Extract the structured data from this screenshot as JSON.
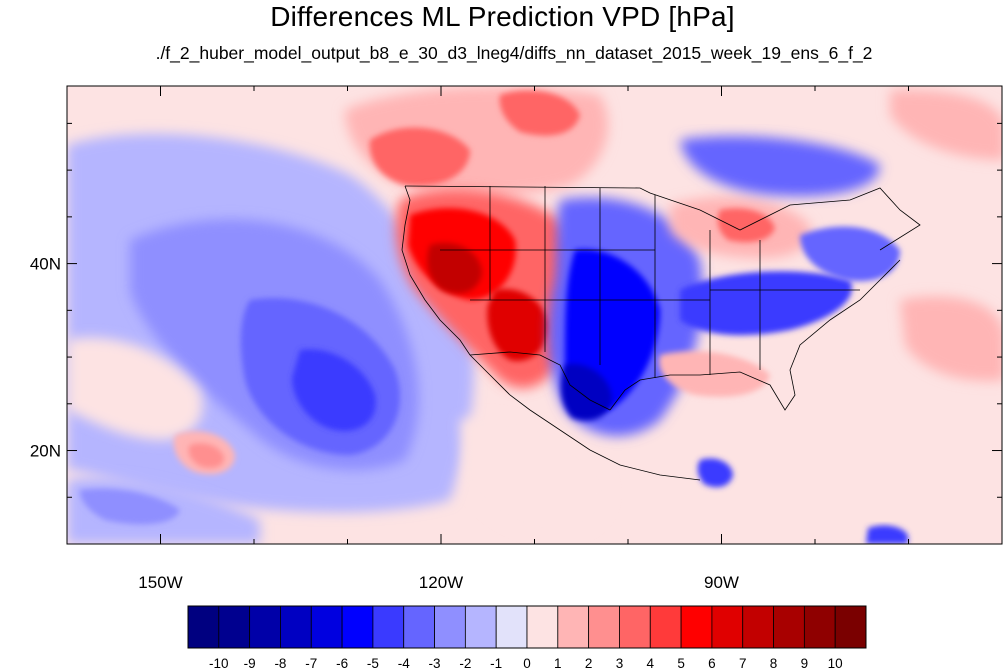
{
  "title": "Differences ML Prediction VPD [hPa]",
  "subtitle": "./f_2_huber_model_output_b8_e_30_d3_lneg4/diffs_nn_dataset_2015_week_19_ens_6_f_2",
  "map": {
    "lon_range": [
      -160,
      -60
    ],
    "lat_range": [
      10,
      59
    ],
    "x_ticks": [
      {
        "value": -150,
        "label": "150W"
      },
      {
        "value": -120,
        "label": "120W"
      },
      {
        "value": -90,
        "label": "90W"
      }
    ],
    "y_ticks": [
      {
        "value": 40,
        "label": "40N"
      },
      {
        "value": 20,
        "label": "20N"
      }
    ],
    "minor_lon_step": 10,
    "minor_lat_step": 5
  },
  "colorbar": {
    "colors": [
      "#000080",
      "#00008f",
      "#0000a8",
      "#0000c2",
      "#0000e0",
      "#0000ff",
      "#3a3aff",
      "#6565ff",
      "#8f8fff",
      "#b5b5ff",
      "#e2e2fa",
      "#fde3e3",
      "#ffb5b5",
      "#ff8f8f",
      "#ff6565",
      "#ff3a3a",
      "#ff0000",
      "#e00000",
      "#c20000",
      "#a80000",
      "#8f0000",
      "#7a0000"
    ],
    "labels": [
      "-10",
      "-9",
      "-8",
      "-7",
      "-6",
      "-5",
      "-4",
      "-3",
      "-2",
      "-1",
      "0",
      "1",
      "2",
      "3",
      "4",
      "5",
      "6",
      "7",
      "8",
      "9",
      "10"
    ]
  },
  "fields": [
    {
      "name": "pacific-background",
      "level": -1
    },
    {
      "name": "pacific-negative-cell",
      "level": -2
    },
    {
      "name": "pacific-core",
      "level": -3
    },
    {
      "name": "pacific-core-inner",
      "level": -4
    },
    {
      "name": "tropical-pacific-positive",
      "level": 1
    },
    {
      "name": "tropical-pacific-positive-cell",
      "level": 2
    },
    {
      "name": "hawaii-positive-cell",
      "level": 3
    },
    {
      "name": "west-canada-positive",
      "level": 2
    },
    {
      "name": "west-canada-positive-core",
      "level": 4
    },
    {
      "name": "western-us-positive",
      "level": 4
    },
    {
      "name": "western-us-positive-core",
      "level": 6
    },
    {
      "name": "western-us-positive-peak",
      "level": 8
    },
    {
      "name": "southwest-positive-core",
      "level": 7
    },
    {
      "name": "great-plains-negative",
      "level": -3
    },
    {
      "name": "great-plains-negative-core",
      "level": -5
    },
    {
      "name": "texas-negative-peak",
      "level": -7
    },
    {
      "name": "great-lakes-positive",
      "level": 2
    },
    {
      "name": "great-lakes-positive-core",
      "level": 4
    },
    {
      "name": "ohio-valley-negative",
      "level": -4
    },
    {
      "name": "northeast-negative",
      "level": -3
    },
    {
      "name": "gulf-positive",
      "level": 2
    },
    {
      "name": "central-america-negative",
      "level": -4
    }
  ]
}
